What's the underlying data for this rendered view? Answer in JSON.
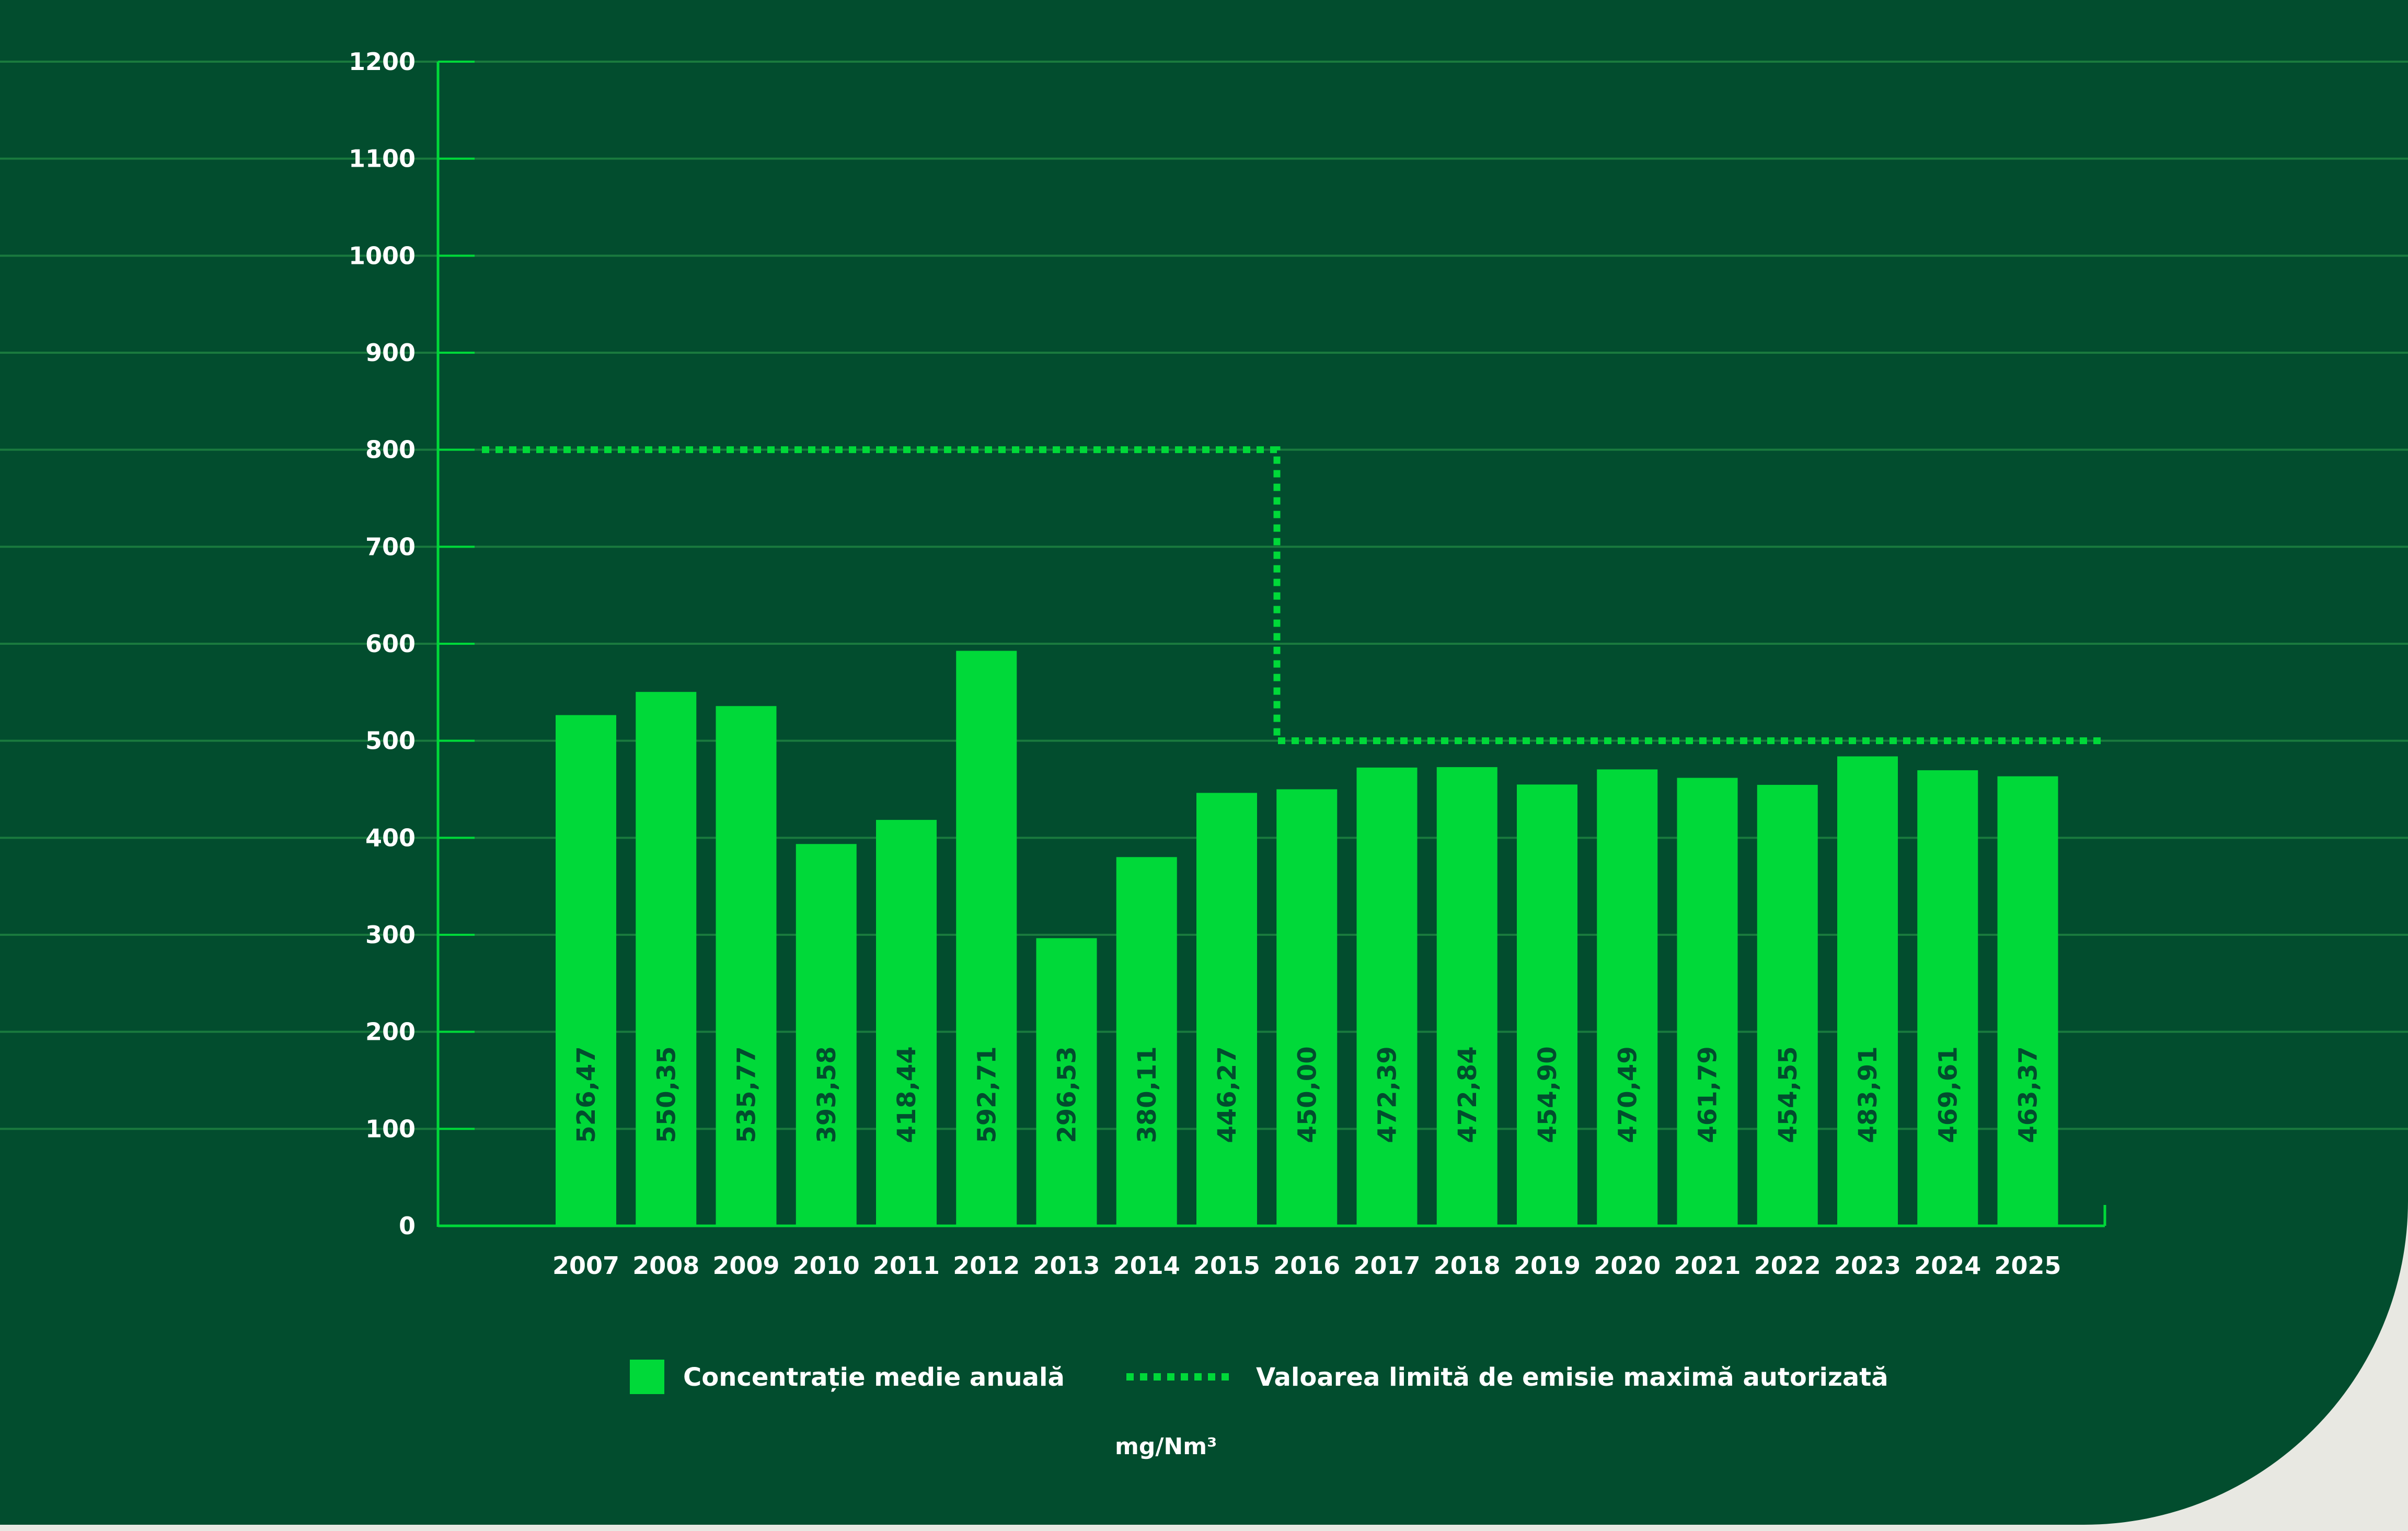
{
  "chart_data": {
    "type": "bar",
    "categories": [
      "2007",
      "2008",
      "2009",
      "2010",
      "2011",
      "2012",
      "2013",
      "2014",
      "2015",
      "2016",
      "2017",
      "2018",
      "2019",
      "2020",
      "2021",
      "2022",
      "2023",
      "2024",
      "2025"
    ],
    "series": [
      {
        "name": "Concentrație medie anuală",
        "values": [
          526.47,
          550.35,
          535.77,
          393.58,
          418.44,
          592.71,
          296.53,
          380.11,
          446.27,
          450.0,
          472.39,
          472.84,
          454.9,
          470.49,
          461.79,
          454.55,
          483.91,
          469.61,
          463.37
        ],
        "value_labels": [
          "526,47",
          "550,35",
          "535,77",
          "393,58",
          "418,44",
          "592,71",
          "296,53",
          "380,11",
          "446,27",
          "450,00",
          "472,39",
          "472,84",
          "454,90",
          "470,49",
          "461,79",
          "454,55",
          "483,91",
          "469,61",
          "463,37"
        ],
        "color": "#00d939"
      }
    ],
    "limit_line": {
      "name": "Valoarea limită de emisie maximă autorizată",
      "segments": [
        {
          "from": "2007",
          "to": "2016",
          "value": 800
        },
        {
          "from": "2016",
          "to": "2025",
          "value": 500
        }
      ],
      "style": "dotted",
      "color": "#00d939"
    },
    "yticks": [
      0,
      100,
      200,
      300,
      400,
      500,
      600,
      700,
      800,
      900,
      1000,
      1100,
      1200
    ],
    "ylim": [
      0,
      1200
    ],
    "unit": "mg/Nm³",
    "grid": true,
    "legend_position": "bottom",
    "colors": {
      "background": "#024d2e",
      "accent": "#00d939",
      "gridline": "#1a7a3e",
      "text": "#ffffff"
    }
  }
}
